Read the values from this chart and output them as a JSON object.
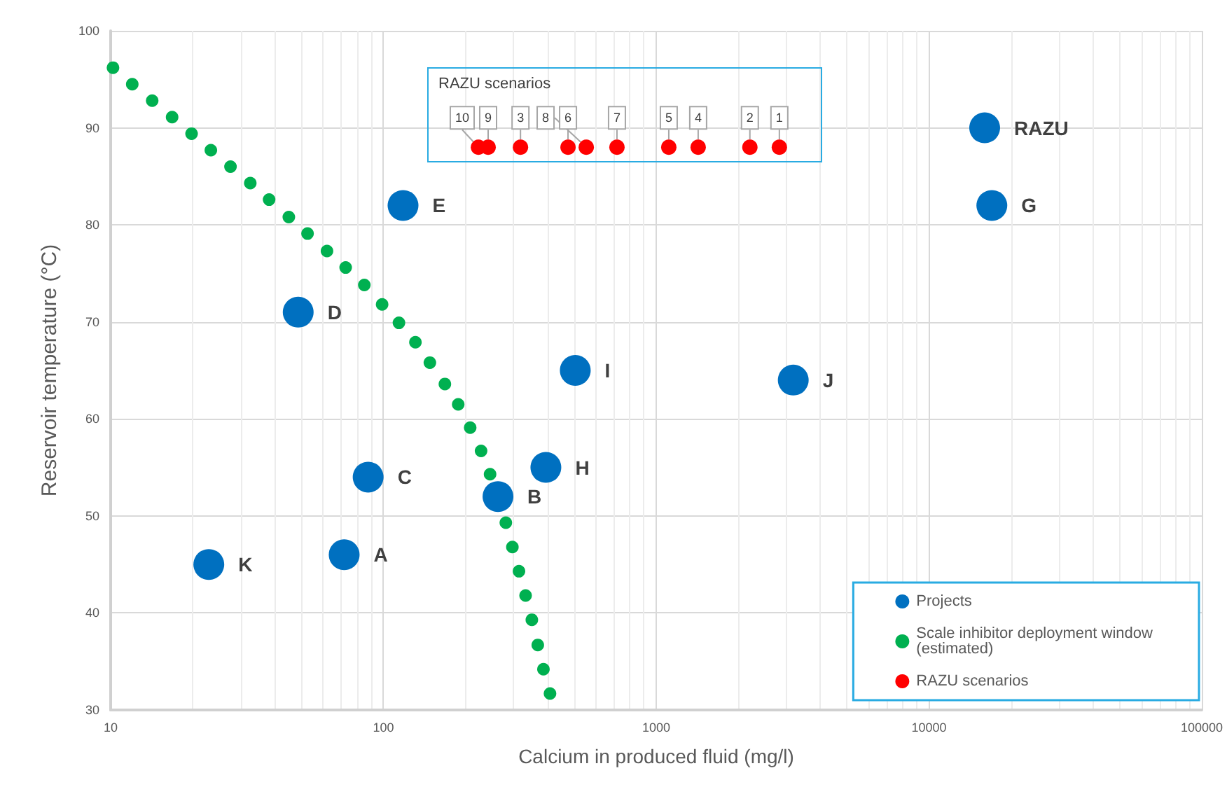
{
  "chart_data": {
    "type": "scatter",
    "xlabel": "Calcium in produced fluid (mg/l)",
    "ylabel": "Reservoir temperature (°C)",
    "log": "x",
    "grid": true,
    "legend": "bottom right",
    "marker": "circle",
    "xlim": [
      10,
      100000
    ],
    "xticks": [
      10,
      100,
      1000,
      10000,
      100000
    ],
    "ylim": [
      30,
      100
    ],
    "yticks": [
      30,
      40,
      50,
      60,
      70,
      80,
      90,
      100
    ],
    "annotations": [
      "RAZU scenarios",
      {
        "text": "K",
        "x": 22.9,
        "y": 45
      },
      {
        "text": "A",
        "x": 71.8,
        "y": 46
      },
      {
        "text": "C",
        "x": 87.9,
        "y": 54
      },
      {
        "text": "D",
        "x": 48.7,
        "y": 71
      },
      {
        "text": "E",
        "x": 118,
        "y": 82
      },
      {
        "text": "B",
        "x": 263,
        "y": 52
      },
      {
        "text": "H",
        "x": 394,
        "y": 55
      },
      {
        "text": "I",
        "x": 505,
        "y": 65
      },
      {
        "text": "J",
        "x": 3180,
        "y": 64
      },
      {
        "text": "RAZU",
        "x": 16000,
        "y": 90
      },
      {
        "text": "G",
        "x": 17000,
        "y": 82
      },
      {
        "text": "1",
        "x": 2828,
        "y": 88
      },
      {
        "text": "2",
        "x": 2205,
        "y": 88
      },
      {
        "text": "3",
        "x": 318,
        "y": 88
      },
      {
        "text": "4",
        "x": 1425,
        "y": 88
      },
      {
        "text": "5",
        "x": 1112,
        "y": 88
      },
      {
        "text": "6",
        "x": 475,
        "y": 88
      },
      {
        "text": "7",
        "x": 718,
        "y": 88
      },
      {
        "text": "8",
        "x": 554,
        "y": 88
      },
      {
        "text": "9",
        "x": 242,
        "y": 88
      },
      {
        "text": "10",
        "x": 223,
        "y": 88
      }
    ],
    "series": [
      {
        "name": "Projects",
        "color": "#0070c0",
        "x": [
          22.9,
          71.8,
          87.9,
          48.7,
          118,
          263,
          394,
          505,
          3180,
          16000,
          17000
        ],
        "values": [
          45,
          46,
          54,
          71,
          82,
          52,
          55,
          65,
          64,
          90,
          82
        ]
      },
      {
        "name": "Scale inhibitor deployment window (estimated)",
        "color": "#00b050",
        "x": [
          10.2,
          12.0,
          14.2,
          16.8,
          19.8,
          23.3,
          27.5,
          32.5,
          38.1,
          45.0,
          52.7,
          62.1,
          72.7,
          85.1,
          98.9,
          114,
          131,
          148,
          168,
          188,
          208,
          228,
          246,
          281,
          297,
          314,
          332,
          350,
          368,
          386,
          408
        ],
        "values": [
          96.2,
          94.5,
          92.8,
          91.1,
          89.4,
          87.7,
          86.0,
          84.3,
          82.6,
          80.8,
          79.1,
          77.3,
          75.6,
          73.8,
          71.8,
          69.9,
          67.9,
          65.8,
          63.6,
          61.5,
          59.1,
          56.7,
          54.3,
          49.3,
          46.8,
          44.3,
          41.8,
          39.3,
          36.7,
          34.2,
          31.7
        ]
      },
      {
        "name": "RAZU scenarios",
        "color": "#ff0000",
        "x": [
          2828,
          2205,
          318,
          1425,
          1112,
          475,
          718,
          554,
          242,
          223
        ],
        "values": [
          88,
          88,
          88,
          88,
          88,
          88,
          88,
          88,
          88,
          88
        ]
      }
    ]
  }
}
